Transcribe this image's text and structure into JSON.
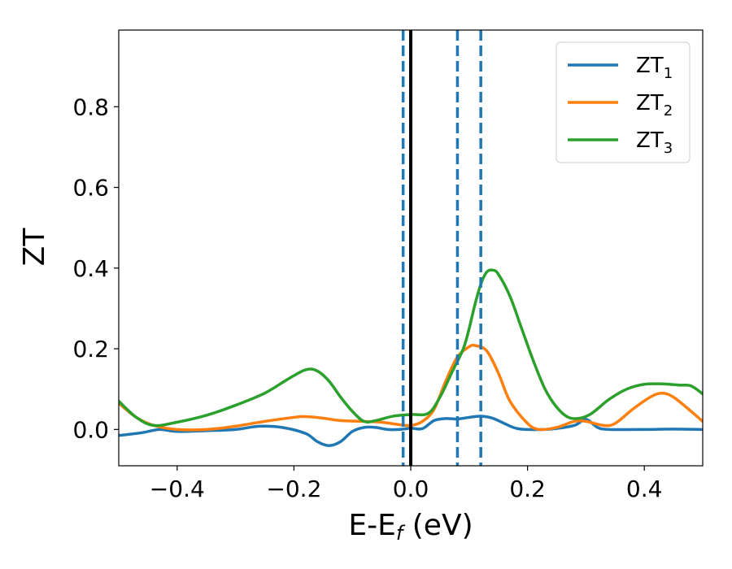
{
  "chart_data": {
    "type": "line",
    "xlabel": "E-E",
    "xlabel_sub": "f",
    "xlabel_unit": " (eV)",
    "ylabel": "ZT",
    "xlim": [
      -0.5,
      0.5
    ],
    "ylim": [
      -0.09,
      0.99
    ],
    "x_ticks": [
      -0.4,
      -0.2,
      0.0,
      0.2,
      0.4
    ],
    "x_tick_labels": [
      "−0.4",
      "−0.2",
      "0.0",
      "0.2",
      "0.4"
    ],
    "y_ticks": [
      0.0,
      0.2,
      0.4,
      0.6,
      0.8
    ],
    "y_tick_labels": [
      "0.0",
      "0.2",
      "0.4",
      "0.6",
      "0.8"
    ],
    "grid": false,
    "legend_position": "top-right",
    "vertical_lines": [
      {
        "x": 0.0,
        "style": "solid",
        "color": "#000000"
      },
      {
        "x": -0.013,
        "style": "dashed",
        "color": "#1f77b4"
      },
      {
        "x": 0.08,
        "style": "dashed",
        "color": "#1f77b4"
      },
      {
        "x": 0.12,
        "style": "dashed",
        "color": "#1f77b4"
      }
    ],
    "series": [
      {
        "name": "ZT",
        "sub": "1",
        "color": "#1f77b4",
        "points": [
          [
            -0.5,
            -0.015
          ],
          [
            -0.46,
            -0.008
          ],
          [
            -0.43,
            0.0
          ],
          [
            -0.4,
            -0.005
          ],
          [
            -0.35,
            -0.003
          ],
          [
            -0.3,
            0.0
          ],
          [
            -0.26,
            0.008
          ],
          [
            -0.22,
            0.005
          ],
          [
            -0.18,
            -0.01
          ],
          [
            -0.16,
            -0.03
          ],
          [
            -0.14,
            -0.04
          ],
          [
            -0.12,
            -0.03
          ],
          [
            -0.1,
            -0.005
          ],
          [
            -0.08,
            0.005
          ],
          [
            -0.06,
            0.005
          ],
          [
            -0.04,
            0.0
          ],
          [
            -0.02,
            0.0
          ],
          [
            0.0,
            0.003
          ],
          [
            0.02,
            0.002
          ],
          [
            0.04,
            0.022
          ],
          [
            0.06,
            0.027
          ],
          [
            0.08,
            0.026
          ],
          [
            0.1,
            0.03
          ],
          [
            0.12,
            0.033
          ],
          [
            0.14,
            0.028
          ],
          [
            0.16,
            0.015
          ],
          [
            0.18,
            0.003
          ],
          [
            0.2,
            0.0
          ],
          [
            0.24,
            0.001
          ],
          [
            0.28,
            0.01
          ],
          [
            0.3,
            0.025
          ],
          [
            0.32,
            0.005
          ],
          [
            0.34,
            0.0
          ],
          [
            0.4,
            0.0
          ],
          [
            0.45,
            0.001
          ],
          [
            0.5,
            0.0
          ]
        ]
      },
      {
        "name": "ZT",
        "sub": "2",
        "color": "#ff7f0e",
        "points": [
          [
            -0.5,
            0.065
          ],
          [
            -0.47,
            0.03
          ],
          [
            -0.44,
            0.01
          ],
          [
            -0.4,
            0.0
          ],
          [
            -0.35,
            0.0
          ],
          [
            -0.3,
            0.008
          ],
          [
            -0.25,
            0.02
          ],
          [
            -0.2,
            0.03
          ],
          [
            -0.18,
            0.032
          ],
          [
            -0.15,
            0.028
          ],
          [
            -0.12,
            0.022
          ],
          [
            -0.08,
            0.02
          ],
          [
            -0.05,
            0.018
          ],
          [
            -0.02,
            0.012
          ],
          [
            0.0,
            0.01
          ],
          [
            0.02,
            0.02
          ],
          [
            0.04,
            0.05
          ],
          [
            0.06,
            0.12
          ],
          [
            0.08,
            0.18
          ],
          [
            0.1,
            0.205
          ],
          [
            0.11,
            0.208
          ],
          [
            0.13,
            0.195
          ],
          [
            0.15,
            0.14
          ],
          [
            0.17,
            0.07
          ],
          [
            0.2,
            0.015
          ],
          [
            0.22,
            0.0
          ],
          [
            0.25,
            0.005
          ],
          [
            0.28,
            0.02
          ],
          [
            0.3,
            0.02
          ],
          [
            0.33,
            0.01
          ],
          [
            0.35,
            0.015
          ],
          [
            0.38,
            0.05
          ],
          [
            0.41,
            0.08
          ],
          [
            0.43,
            0.09
          ],
          [
            0.45,
            0.08
          ],
          [
            0.48,
            0.045
          ],
          [
            0.5,
            0.02
          ]
        ]
      },
      {
        "name": "ZT",
        "sub": "3",
        "color": "#2ca02c",
        "points": [
          [
            -0.5,
            0.07
          ],
          [
            -0.47,
            0.03
          ],
          [
            -0.44,
            0.01
          ],
          [
            -0.4,
            0.018
          ],
          [
            -0.35,
            0.035
          ],
          [
            -0.3,
            0.06
          ],
          [
            -0.25,
            0.09
          ],
          [
            -0.21,
            0.125
          ],
          [
            -0.18,
            0.148
          ],
          [
            -0.16,
            0.145
          ],
          [
            -0.14,
            0.12
          ],
          [
            -0.12,
            0.08
          ],
          [
            -0.1,
            0.045
          ],
          [
            -0.08,
            0.02
          ],
          [
            -0.06,
            0.022
          ],
          [
            -0.03,
            0.033
          ],
          [
            0.0,
            0.037
          ],
          [
            0.03,
            0.04
          ],
          [
            0.05,
            0.08
          ],
          [
            0.07,
            0.14
          ],
          [
            0.09,
            0.2
          ],
          [
            0.1,
            0.25
          ],
          [
            0.11,
            0.31
          ],
          [
            0.12,
            0.36
          ],
          [
            0.13,
            0.39
          ],
          [
            0.14,
            0.395
          ],
          [
            0.15,
            0.385
          ],
          [
            0.17,
            0.33
          ],
          [
            0.19,
            0.25
          ],
          [
            0.21,
            0.17
          ],
          [
            0.23,
            0.1
          ],
          [
            0.25,
            0.055
          ],
          [
            0.27,
            0.03
          ],
          [
            0.29,
            0.028
          ],
          [
            0.31,
            0.04
          ],
          [
            0.34,
            0.075
          ],
          [
            0.37,
            0.1
          ],
          [
            0.4,
            0.112
          ],
          [
            0.43,
            0.113
          ],
          [
            0.46,
            0.11
          ],
          [
            0.48,
            0.108
          ],
          [
            0.5,
            0.088
          ]
        ]
      }
    ]
  }
}
